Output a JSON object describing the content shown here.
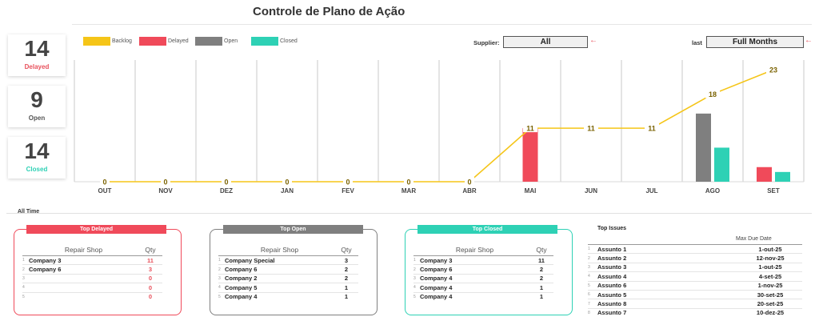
{
  "header": {
    "title": "Controle de Plano de Ação"
  },
  "kpis": [
    {
      "value": "14",
      "label": "Delayed",
      "color": "#e8505b"
    },
    {
      "value": "9",
      "label": "Open",
      "color": "#555555"
    },
    {
      "value": "14",
      "label": "Closed",
      "color": "#2ed1b5"
    }
  ],
  "legend": [
    {
      "label": "Backlog",
      "color": "#f5c518"
    },
    {
      "label": "Delayed",
      "color": "#f04a5a"
    },
    {
      "label": "Open",
      "color": "#7f7f7f"
    },
    {
      "label": "Closed",
      "color": "#2ed1b5"
    }
  ],
  "filters": {
    "supplier_label": "Supplier:",
    "supplier_value": "All",
    "period_label": "last",
    "period_value": "Full Months"
  },
  "chart_data": {
    "type": "bar",
    "categories": [
      "OUT",
      "NOV",
      "DEZ",
      "JAN",
      "FEV",
      "MAR",
      "ABR",
      "MAI",
      "JUN",
      "JUL",
      "AGO",
      "SET"
    ],
    "ylim": [
      0,
      25
    ],
    "grid": "vertical",
    "series": [
      {
        "name": "Backlog",
        "kind": "line",
        "color": "#f5c518",
        "values": [
          0,
          0,
          0,
          0,
          0,
          0,
          0,
          11,
          11,
          11,
          18,
          23
        ]
      },
      {
        "name": "Delayed",
        "kind": "bar",
        "color": "#f04a5a",
        "values": [
          0,
          0,
          0,
          0,
          0,
          0,
          0,
          11,
          0,
          0,
          0,
          3
        ]
      },
      {
        "name": "Open",
        "kind": "bar",
        "color": "#7f7f7f",
        "values": [
          0,
          0,
          0,
          0,
          0,
          0,
          0,
          0,
          0,
          0,
          14,
          0
        ]
      },
      {
        "name": "Closed",
        "kind": "bar",
        "color": "#2ed1b5",
        "values": [
          0,
          0,
          0,
          0,
          0,
          0,
          0,
          0,
          0,
          0,
          7,
          2
        ]
      }
    ]
  },
  "section_label": "All Time",
  "panels": [
    {
      "title": "Top Delayed",
      "color": "#f04a5a",
      "qty_color": "#e8505b",
      "col_shop": "Repair Shop",
      "col_qty": "Qty",
      "rows": [
        {
          "idx": "1",
          "name": "Company 3",
          "qty": "11"
        },
        {
          "idx": "2",
          "name": "Company 6",
          "qty": "3"
        },
        {
          "idx": "3",
          "name": "",
          "qty": "0"
        },
        {
          "idx": "4",
          "name": "",
          "qty": "0"
        },
        {
          "idx": "5",
          "name": "",
          "qty": "0"
        }
      ]
    },
    {
      "title": "Top Open",
      "color": "#7f7f7f",
      "qty_color": "#222222",
      "col_shop": "Repair Shop",
      "col_qty": "Qty",
      "rows": [
        {
          "idx": "1",
          "name": "Company Special",
          "qty": "3"
        },
        {
          "idx": "2",
          "name": "Company 6",
          "qty": "2"
        },
        {
          "idx": "3",
          "name": "Company 2",
          "qty": "2"
        },
        {
          "idx": "4",
          "name": "Company 5",
          "qty": "1"
        },
        {
          "idx": "5",
          "name": "Company 4",
          "qty": "1"
        }
      ]
    },
    {
      "title": "Top Closed",
      "color": "#2ed1b5",
      "qty_color": "#222222",
      "col_shop": "Repair Shop",
      "col_qty": "Qty",
      "rows": [
        {
          "idx": "1",
          "name": "Company 3",
          "qty": "11"
        },
        {
          "idx": "2",
          "name": "Company 6",
          "qty": "2"
        },
        {
          "idx": "3",
          "name": "Company 4",
          "qty": "2"
        },
        {
          "idx": "4",
          "name": "Company 4",
          "qty": "1"
        },
        {
          "idx": "5",
          "name": "Company 4",
          "qty": "1"
        }
      ]
    }
  ],
  "issues": {
    "title": "Top Issues",
    "col_date": "Max Due Date",
    "rows": [
      {
        "idx": "1",
        "name": "Assunto 1",
        "date": "1-out-25"
      },
      {
        "idx": "2",
        "name": "Assunto 2",
        "date": "12-nov-25"
      },
      {
        "idx": "3",
        "name": "Assunto 3",
        "date": "1-out-25"
      },
      {
        "idx": "4",
        "name": "Assunto 4",
        "date": "4-set-25"
      },
      {
        "idx": "5",
        "name": "Assunto 6",
        "date": "1-nov-25"
      },
      {
        "idx": "6",
        "name": "Assunto 5",
        "date": "30-set-25"
      },
      {
        "idx": "7",
        "name": "Assunto 8",
        "date": "20-set-25"
      },
      {
        "idx": "8",
        "name": "Assunto 7",
        "date": "10-dez-25"
      }
    ]
  }
}
